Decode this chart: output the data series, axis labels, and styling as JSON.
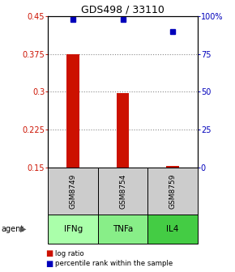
{
  "title": "GDS498 / 33110",
  "samples": [
    "GSM8749",
    "GSM8754",
    "GSM8759"
  ],
  "agents": [
    "IFNg",
    "TNFa",
    "IL4"
  ],
  "log_ratio": [
    0.375,
    0.297,
    0.153
  ],
  "percentile_rank_pct": [
    98,
    98,
    90
  ],
  "log_ratio_baseline": 0.15,
  "ylim_left": [
    0.15,
    0.45
  ],
  "ylim_right": [
    0,
    100
  ],
  "yticks_left": [
    0.15,
    0.225,
    0.3,
    0.375,
    0.45
  ],
  "yticks_right": [
    0,
    25,
    50,
    75,
    100
  ],
  "bar_color": "#cc1100",
  "dot_color": "#0000bb",
  "agent_colors": [
    "#aaffaa",
    "#88ee88",
    "#44cc44"
  ],
  "sample_box_color": "#cccccc",
  "grid_color": "#888888",
  "left_tick_color": "#cc1100",
  "right_tick_color": "#0000bb",
  "bar_width": 0.25
}
